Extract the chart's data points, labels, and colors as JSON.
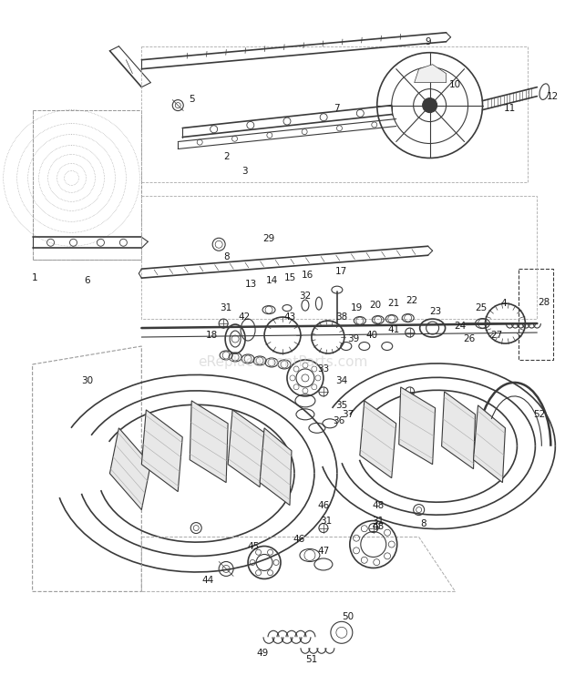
{
  "bg_color": "#ffffff",
  "line_color": "#3a3a3a",
  "label_color": "#1a1a1a",
  "watermark": "eReplacementParts.com",
  "watermark_color": "#c8c8c8",
  "fig_width": 6.2,
  "fig_height": 7.64,
  "dpi": 100
}
